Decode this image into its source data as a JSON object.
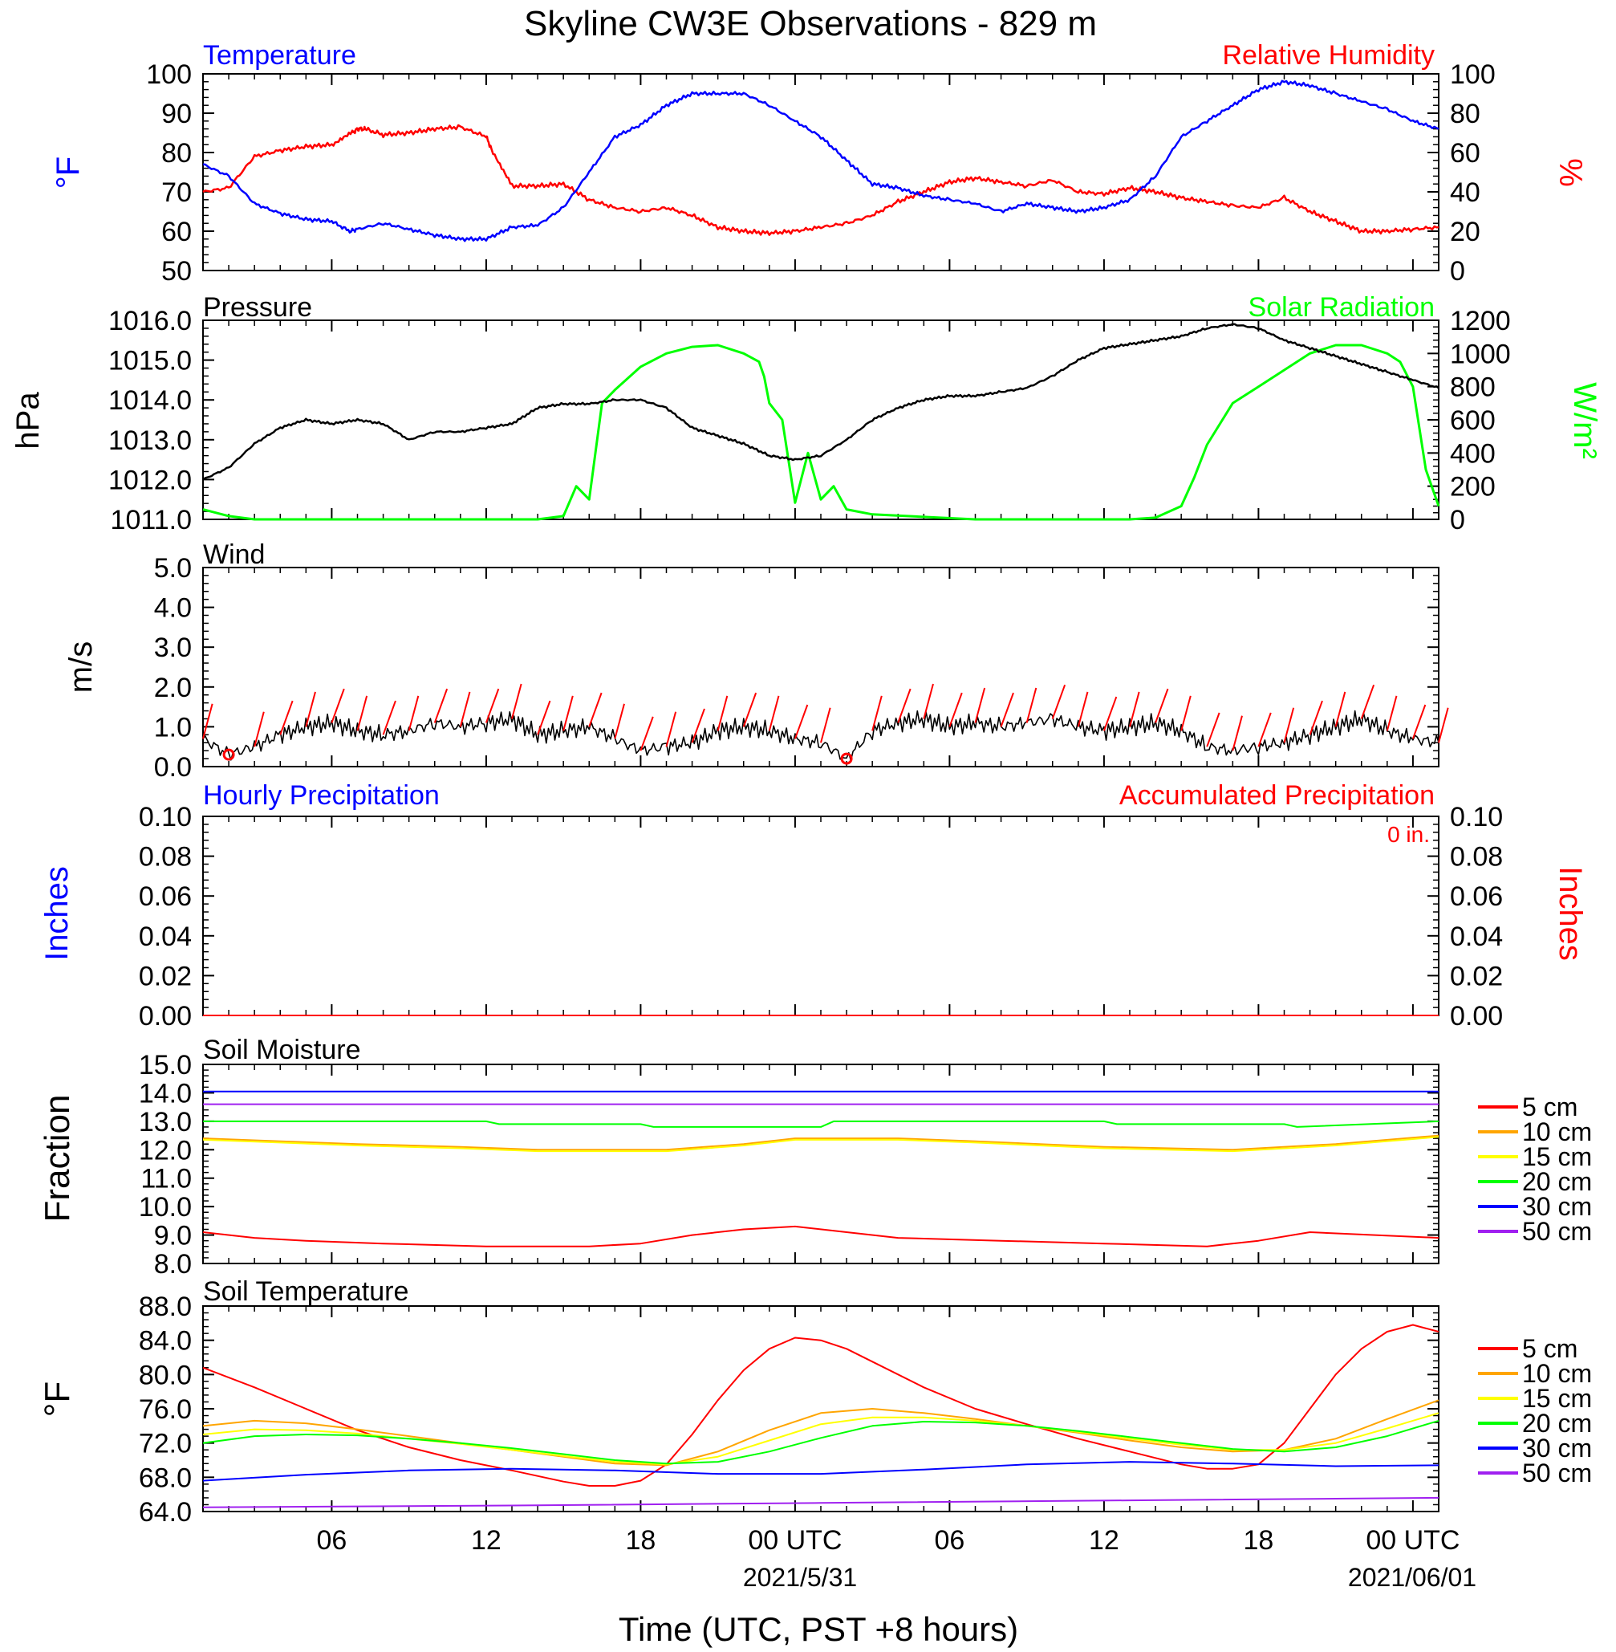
{
  "figure": {
    "title": "Skyline CW3E Observations - 829 m",
    "xlabel": "Time (UTC, PST +8 hours)",
    "x_ticks": [
      "06",
      "12",
      "18",
      "00 UTC",
      "06",
      "12",
      "18",
      "00 UTC"
    ],
    "x_dates": [
      "2021/5/31",
      "2021/06/01"
    ]
  },
  "colors": {
    "blue": "#0000ff",
    "red": "#ff0000",
    "green": "#00ff00",
    "black": "#000000",
    "orange": "#ffa500",
    "yellow": "#ffff00",
    "purple": "#a020f0"
  },
  "panels": {
    "temp": {
      "left_title": "Temperature",
      "right_title": "Relative Humidity",
      "left_unit": "°F",
      "right_unit": "%",
      "left_ticks": [
        "100",
        "90",
        "80",
        "70",
        "60",
        "50"
      ],
      "right_ticks": [
        "100",
        "80",
        "60",
        "40",
        "20",
        "0"
      ]
    },
    "pres": {
      "left_title": "Pressure",
      "right_title": "Solar Radiation",
      "left_unit": "hPa",
      "right_unit": "W/m²",
      "left_ticks": [
        "1016.0",
        "1015.0",
        "1014.0",
        "1013.0",
        "1012.0",
        "1011.0"
      ],
      "right_ticks": [
        "1200",
        "1000",
        "800",
        "600",
        "400",
        "200",
        "0"
      ]
    },
    "wind": {
      "left_title": "Wind",
      "left_unit": "m/s",
      "left_ticks": [
        "5.0",
        "4.0",
        "3.0",
        "2.0",
        "1.0",
        "0.0"
      ]
    },
    "precip": {
      "left_title": "Hourly Precipitation",
      "right_title": "Accumulated Precipitation",
      "total_label": "0 in.",
      "left_unit": "Inches",
      "right_unit": "Inches",
      "left_ticks": [
        "0.10",
        "0.08",
        "0.06",
        "0.04",
        "0.02",
        "0.00"
      ],
      "right_ticks": [
        "0.10",
        "0.08",
        "0.06",
        "0.04",
        "0.02",
        "0.00"
      ]
    },
    "soilm": {
      "left_title": "Soil Moisture",
      "left_unit": "Fraction",
      "left_ticks": [
        "15.0",
        "14.0",
        "13.0",
        "12.0",
        "11.0",
        "10.0",
        "9.0",
        "8.0"
      ],
      "legend": [
        "5 cm",
        "10 cm",
        "15 cm",
        "20 cm",
        "30 cm",
        "50 cm"
      ]
    },
    "soilt": {
      "left_title": "Soil Temperature",
      "left_unit": "°F",
      "left_ticks": [
        "88.0",
        "84.0",
        "80.0",
        "76.0",
        "72.0",
        "68.0",
        "64.0"
      ],
      "legend": [
        "5 cm",
        "10 cm",
        "15 cm",
        "20 cm",
        "30 cm",
        "50 cm"
      ]
    }
  },
  "chart_data": {
    "type": "line",
    "x_unit": "hours since 2021-05-30 01:00 UTC",
    "xlim": [
      0,
      48
    ],
    "temperature": {
      "name": "Temperature",
      "ylim": [
        50,
        100
      ],
      "x": [
        0,
        1,
        2,
        3,
        4,
        5,
        5.7,
        6,
        7,
        8,
        9,
        10,
        11,
        12,
        13,
        14,
        15,
        16,
        17,
        18,
        19,
        20,
        21,
        22,
        23,
        24,
        25,
        26,
        27,
        28,
        29,
        30,
        31,
        32,
        33,
        34,
        35,
        36,
        37,
        38,
        39,
        40,
        41,
        42,
        43,
        44,
        45,
        46,
        47,
        48
      ],
      "y": [
        77,
        74,
        67,
        64.5,
        63,
        62.5,
        60,
        60.5,
        62,
        60.5,
        59,
        58,
        58,
        61,
        61.5,
        66,
        75,
        84,
        87,
        92,
        95,
        95,
        95,
        92,
        88,
        84,
        78,
        72,
        71,
        69,
        68,
        67,
        65,
        67,
        66,
        65,
        66,
        68,
        74,
        84,
        88,
        92,
        96,
        98,
        97,
        95,
        93,
        91,
        88,
        86
      ]
    },
    "relative_humidity": {
      "name": "Relative Humidity",
      "ylim": [
        0,
        100
      ],
      "x": [
        0,
        1,
        2,
        3,
        4,
        5,
        5.8,
        6,
        6.3,
        7,
        8,
        9,
        10,
        11,
        11.2,
        12,
        13,
        14,
        15,
        16,
        17,
        18,
        19,
        20,
        21,
        22,
        23,
        24,
        25,
        26,
        27,
        28,
        29,
        30,
        31,
        32,
        33,
        34,
        35,
        36,
        37,
        38,
        39,
        40,
        41,
        42,
        43,
        44,
        45,
        46,
        47,
        48
      ],
      "y": [
        40,
        42,
        58,
        61,
        63,
        64,
        70,
        72,
        72,
        69,
        70,
        72,
        73,
        68,
        62,
        43,
        43,
        44,
        36,
        32,
        30,
        32,
        28,
        22,
        20,
        19,
        20,
        22,
        24,
        28,
        35,
        40,
        45,
        47,
        45,
        43,
        46,
        40,
        39,
        42,
        40,
        37,
        35,
        33,
        32,
        37,
        30,
        25,
        20,
        20,
        21,
        22
      ]
    },
    "pressure": {
      "name": "Pressure",
      "ylim": [
        1011,
        1016
      ],
      "x": [
        0,
        1,
        2,
        3,
        4,
        5,
        6,
        7,
        8,
        9,
        10,
        11,
        12,
        13,
        14,
        15,
        16,
        17,
        18,
        19,
        20,
        21,
        22,
        23,
        24,
        25,
        26,
        27,
        28,
        29,
        30,
        31,
        32,
        33,
        34,
        35,
        36,
        37,
        38,
        39,
        40,
        41,
        42,
        43,
        44,
        45,
        46,
        47,
        48
      ],
      "y": [
        1012.0,
        1012.3,
        1012.9,
        1013.3,
        1013.5,
        1013.4,
        1013.5,
        1013.4,
        1013.0,
        1013.2,
        1013.2,
        1013.3,
        1013.4,
        1013.8,
        1013.9,
        1013.9,
        1014.0,
        1014.0,
        1013.8,
        1013.3,
        1013.1,
        1012.9,
        1012.6,
        1012.5,
        1012.6,
        1013.0,
        1013.5,
        1013.8,
        1014.0,
        1014.1,
        1014.1,
        1014.2,
        1014.3,
        1014.6,
        1015.0,
        1015.3,
        1015.4,
        1015.5,
        1015.6,
        1015.8,
        1015.9,
        1015.8,
        1015.5,
        1015.3,
        1015.1,
        1014.9,
        1014.7,
        1014.5,
        1014.3
      ]
    },
    "solar_radiation": {
      "name": "Solar Radiation",
      "ylim": [
        0,
        1200
      ],
      "x": [
        0,
        1,
        2,
        5,
        10,
        13,
        14,
        14.5,
        15,
        15.5,
        16,
        17,
        18,
        19,
        20,
        21,
        21.6,
        21.8,
        22,
        22.5,
        23,
        23.5,
        24,
        24.5,
        25,
        26,
        30,
        35,
        36,
        37,
        38,
        38.5,
        39,
        40,
        41,
        42,
        43,
        44,
        45,
        46,
        46.5,
        47,
        47.5,
        48
      ],
      "y": [
        60,
        20,
        0,
        0,
        0,
        0,
        20,
        200,
        120,
        700,
        780,
        920,
        1000,
        1040,
        1050,
        1000,
        950,
        860,
        700,
        600,
        100,
        400,
        120,
        200,
        60,
        30,
        0,
        0,
        0,
        10,
        80,
        250,
        450,
        700,
        800,
        900,
        1000,
        1050,
        1050,
        1000,
        950,
        800,
        300,
        80
      ]
    },
    "wind_speed": {
      "name": "Wind",
      "ylim": [
        0,
        5
      ],
      "x": [
        0,
        1,
        2,
        3,
        4,
        5,
        6,
        7,
        8,
        9,
        10,
        11,
        12,
        13,
        14,
        15,
        16,
        17,
        18,
        19,
        20,
        21,
        22,
        23,
        24,
        25,
        26,
        27,
        28,
        29,
        30,
        31,
        32,
        33,
        34,
        35,
        36,
        37,
        38,
        39,
        40,
        41,
        42,
        43,
        44,
        45,
        46,
        47,
        48
      ],
      "y": [
        0.7,
        0.3,
        0.5,
        0.8,
        1.0,
        1.1,
        0.9,
        0.8,
        0.9,
        1.1,
        1.0,
        1.1,
        1.2,
        0.8,
        0.9,
        1.0,
        0.7,
        0.4,
        0.5,
        0.6,
        0.9,
        1.0,
        0.9,
        0.7,
        0.6,
        0.2,
        0.9,
        1.1,
        1.2,
        1.0,
        1.1,
        1.0,
        1.1,
        1.2,
        1.0,
        0.9,
        1.0,
        1.1,
        0.9,
        0.5,
        0.4,
        0.5,
        0.6,
        0.8,
        1.0,
        1.2,
        0.9,
        0.7,
        0.6
      ]
    },
    "hourly_precipitation": {
      "name": "Hourly Precipitation",
      "ylim": [
        0,
        0.1
      ],
      "x": [
        0,
        48
      ],
      "y": [
        0,
        0
      ]
    },
    "accumulated_precipitation": {
      "name": "Accumulated Precipitation",
      "ylim": [
        0,
        0.1
      ],
      "x": [
        0,
        48
      ],
      "y": [
        0,
        0
      ]
    },
    "soil_moisture": {
      "ylim": [
        8,
        15
      ],
      "series": [
        {
          "name": "5 cm",
          "x": [
            0,
            2,
            4,
            7,
            11,
            15,
            17,
            19,
            21,
            23,
            25,
            27,
            31,
            35,
            39,
            41,
            43,
            48
          ],
          "y": [
            9.1,
            8.9,
            8.8,
            8.7,
            8.6,
            8.6,
            8.7,
            9.0,
            9.2,
            9.3,
            9.1,
            8.9,
            8.8,
            8.7,
            8.6,
            8.8,
            9.1,
            8.9
          ]
        },
        {
          "name": "10 cm",
          "x": [
            0,
            3,
            6,
            10,
            13,
            18,
            21,
            23,
            27,
            30,
            35,
            40,
            44,
            48
          ],
          "y": [
            12.4,
            12.3,
            12.2,
            12.1,
            12.0,
            12.0,
            12.2,
            12.4,
            12.4,
            12.3,
            12.1,
            12.0,
            12.2,
            12.5
          ]
        },
        {
          "name": "15 cm",
          "x": [
            0,
            3,
            6,
            10,
            13,
            18,
            21,
            23,
            27,
            30,
            35,
            40,
            44,
            48
          ],
          "y": [
            12.35,
            12.25,
            12.15,
            12.05,
            11.95,
            11.95,
            12.15,
            12.35,
            12.35,
            12.25,
            12.05,
            11.95,
            12.15,
            12.45
          ]
        },
        {
          "name": "20 cm",
          "x": [
            0,
            11,
            11.5,
            17,
            17.5,
            24,
            24.5,
            35,
            35.5,
            42,
            42.5,
            48
          ],
          "y": [
            13.0,
            13.0,
            12.9,
            12.9,
            12.8,
            12.8,
            13.0,
            13.0,
            12.9,
            12.9,
            12.8,
            13.0
          ]
        },
        {
          "name": "30 cm",
          "x": [
            0,
            48
          ],
          "y": [
            14.05,
            14.05
          ]
        },
        {
          "name": "50 cm",
          "x": [
            0,
            48
          ],
          "y": [
            13.6,
            13.6
          ]
        }
      ]
    },
    "soil_temperature": {
      "ylim": [
        64,
        88
      ],
      "series": [
        {
          "name": "5 cm",
          "x": [
            0,
            2,
            4,
            6,
            8,
            10,
            12,
            14,
            15,
            16,
            17,
            18,
            19,
            20,
            21,
            22,
            23,
            24,
            25,
            26,
            28,
            30,
            32,
            34,
            36,
            38,
            39,
            40,
            41,
            42,
            43,
            44,
            45,
            46,
            47,
            48
          ],
          "y": [
            80.8,
            78.5,
            76,
            73.5,
            71.5,
            70,
            68.8,
            67.5,
            67,
            67,
            67.6,
            69.5,
            73,
            77,
            80.5,
            83,
            84.3,
            84,
            83,
            81.5,
            78.5,
            76,
            74.2,
            72.5,
            71,
            69.5,
            69,
            69,
            69.5,
            72,
            76,
            80,
            83,
            85,
            85.8,
            85
          ]
        },
        {
          "name": "10 cm",
          "x": [
            0,
            2,
            4,
            6,
            8,
            10,
            12,
            14,
            16,
            18,
            20,
            22,
            24,
            26,
            28,
            30,
            32,
            34,
            36,
            38,
            40,
            42,
            44,
            46,
            48
          ],
          "y": [
            74,
            74.6,
            74.3,
            73.6,
            72.8,
            72,
            71.2,
            70.4,
            69.6,
            69.4,
            71,
            73.5,
            75.5,
            76,
            75.5,
            74.8,
            74,
            73.2,
            72.3,
            71.5,
            71,
            71.2,
            72.5,
            74.8,
            77
          ]
        },
        {
          "name": "15 cm",
          "x": [
            0,
            2,
            4,
            6,
            8,
            10,
            12,
            14,
            16,
            18,
            20,
            22,
            24,
            26,
            28,
            30,
            32,
            34,
            36,
            38,
            40,
            42,
            44,
            46,
            48
          ],
          "y": [
            73,
            73.6,
            73.5,
            73.1,
            72.5,
            71.9,
            71.2,
            70.5,
            69.8,
            69.5,
            70.4,
            72.3,
            74.2,
            75,
            75,
            74.6,
            74,
            73.3,
            72.5,
            71.8,
            71.2,
            71.2,
            72,
            73.7,
            75.5
          ]
        },
        {
          "name": "20 cm",
          "x": [
            0,
            2,
            4,
            6,
            8,
            10,
            12,
            14,
            16,
            18,
            20,
            22,
            24,
            26,
            28,
            30,
            32,
            34,
            36,
            38,
            40,
            42,
            44,
            46,
            48
          ],
          "y": [
            72,
            72.8,
            73,
            72.9,
            72.5,
            72,
            71.4,
            70.7,
            70.0,
            69.6,
            69.8,
            71,
            72.6,
            74,
            74.5,
            74.4,
            74,
            73.4,
            72.7,
            72,
            71.3,
            71.0,
            71.5,
            72.8,
            74.6
          ]
        },
        {
          "name": "30 cm",
          "x": [
            0,
            4,
            8,
            12,
            16,
            20,
            24,
            28,
            32,
            36,
            40,
            44,
            48
          ],
          "y": [
            67.6,
            68.3,
            68.8,
            69.0,
            68.8,
            68.4,
            68.4,
            68.9,
            69.5,
            69.8,
            69.6,
            69.3,
            69.4
          ]
        },
        {
          "name": "50 cm",
          "x": [
            0,
            12,
            24,
            36,
            48
          ],
          "y": [
            64.5,
            64.7,
            65.0,
            65.3,
            65.6
          ]
        }
      ]
    }
  }
}
